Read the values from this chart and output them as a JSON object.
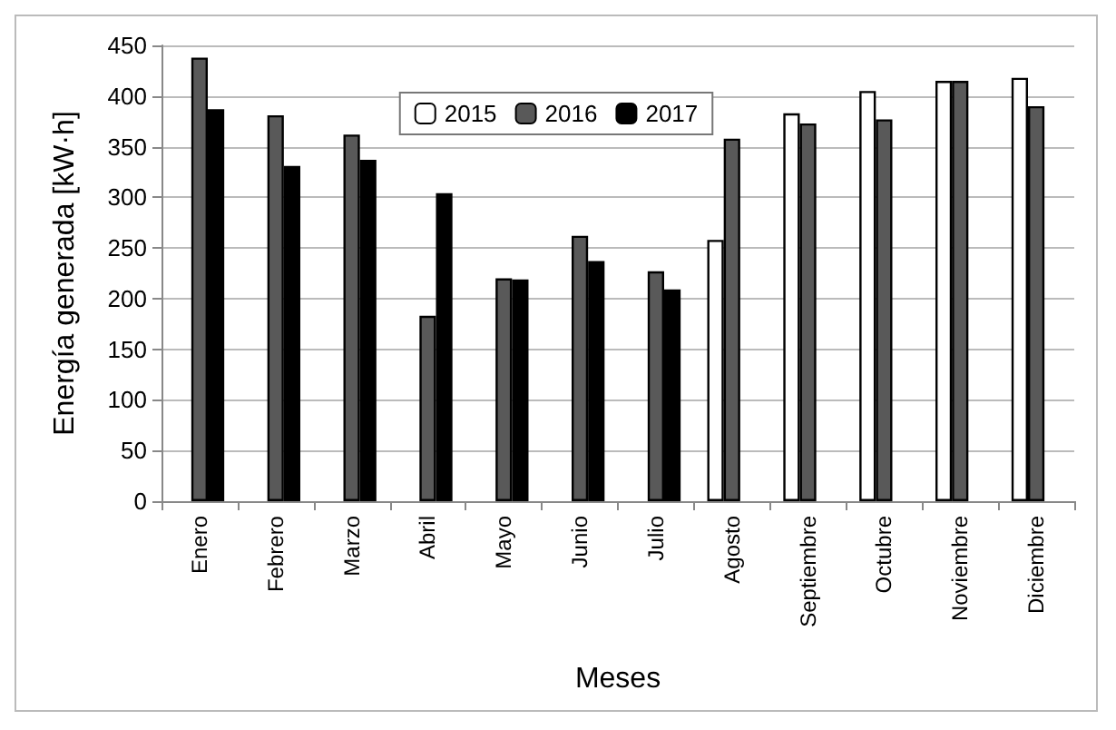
{
  "chart_data": {
    "type": "bar",
    "xlabel": "Meses",
    "ylabel": "Energía generada [kW·h]",
    "categories": [
      "Enero",
      "Febrero",
      "Marzo",
      "Abril",
      "Mayo",
      "Junio",
      "Julio",
      "Agosto",
      "Septiembre",
      "Octubre",
      "Noviembre",
      "Diciembre"
    ],
    "series": [
      {
        "name": "2015",
        "color": "#ffffff",
        "values": [
          null,
          null,
          null,
          null,
          null,
          null,
          null,
          258,
          383,
          405,
          415,
          418
        ]
      },
      {
        "name": "2016",
        "color": "#595959",
        "values": [
          438,
          381,
          362,
          183,
          220,
          262,
          227,
          358,
          373,
          377,
          415,
          390
        ]
      },
      {
        "name": "2017",
        "color": "#000000",
        "values": [
          387,
          331,
          337,
          304,
          219,
          237,
          209,
          null,
          null,
          null,
          null,
          null
        ]
      }
    ],
    "ylim": [
      0,
      450
    ],
    "yticks": [
      0,
      50,
      100,
      150,
      200,
      250,
      300,
      350,
      400,
      450
    ],
    "grid": "y",
    "legend": "top"
  }
}
